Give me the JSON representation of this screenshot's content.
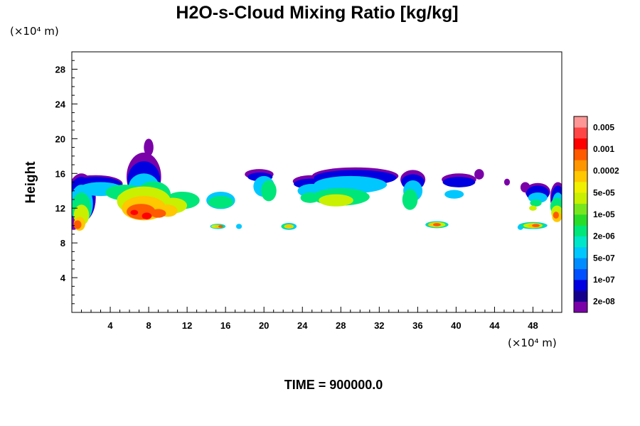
{
  "chart_data": {
    "type": "heatmap",
    "title": "H2O-s-Cloud Mixing Ratio [kg/kg]",
    "ylabel": "Height",
    "x_unit": "(×10⁴ m)",
    "y_unit": "(×10⁴ m)",
    "footer": "TIME = 900000.0",
    "xlim": [
      0,
      51
    ],
    "ylim": [
      0,
      30
    ],
    "x_ticks": [
      4,
      8,
      12,
      16,
      20,
      24,
      28,
      32,
      36,
      40,
      44,
      48
    ],
    "y_ticks": [
      4,
      8,
      12,
      16,
      20,
      24,
      28
    ],
    "colorbar": {
      "colors": [
        "#7a00a8",
        "#15008c",
        "#0000e0",
        "#0050ff",
        "#008cff",
        "#00c8ff",
        "#00e6c8",
        "#00e678",
        "#28dc28",
        "#78e61e",
        "#c8f000",
        "#f0f000",
        "#ffc800",
        "#ff9600",
        "#ff5a00",
        "#ff0000",
        "#ff4646",
        "#ff9696"
      ],
      "labels": [
        "2e-08",
        "1e-07",
        "5e-07",
        "2e-06",
        "1e-05",
        "5e-05",
        "0.0002",
        "0.001",
        "0.005"
      ]
    },
    "cloud_layers": [
      {
        "colorIdx": 0,
        "blobs": [
          [
            2.5,
            14.8,
            2.8,
            1.0
          ],
          [
            7.5,
            15.6,
            1.8,
            2.8
          ],
          [
            1.0,
            13.2,
            1.5,
            2.8
          ],
          [
            0.2,
            10.3,
            0.6,
            0.8
          ],
          [
            19.5,
            15.9,
            1.5,
            0.6
          ],
          [
            29.5,
            15.7,
            4.5,
            1.0
          ],
          [
            25.0,
            15.1,
            2.0,
            0.7
          ],
          [
            35.5,
            15.3,
            1.3,
            1.1
          ],
          [
            40.3,
            15.3,
            1.8,
            0.7
          ],
          [
            42.4,
            15.9,
            0.5,
            0.6
          ],
          [
            48.5,
            13.9,
            1.3,
            1.0
          ],
          [
            50.6,
            13.2,
            0.8,
            1.8
          ],
          [
            45.3,
            15.0,
            0.3,
            0.4
          ],
          [
            8.0,
            19.0,
            0.5,
            1.0
          ],
          [
            47.2,
            14.4,
            0.5,
            0.6
          ]
        ]
      },
      {
        "colorIdx": 2,
        "blobs": [
          [
            2.5,
            14.7,
            2.7,
            0.9
          ],
          [
            7.5,
            15.2,
            1.7,
            2.2
          ],
          [
            1.0,
            13.0,
            1.4,
            2.6
          ],
          [
            19.6,
            15.6,
            1.3,
            0.5
          ],
          [
            29.5,
            15.5,
            4.3,
            0.9
          ],
          [
            25.0,
            14.8,
            1.9,
            0.6
          ],
          [
            35.5,
            15.0,
            1.2,
            0.9
          ],
          [
            40.3,
            15.0,
            1.7,
            0.6
          ],
          [
            48.5,
            13.7,
            1.2,
            0.9
          ],
          [
            50.6,
            13.0,
            0.7,
            1.6
          ]
        ]
      },
      {
        "colorIdx": 5,
        "blobs": [
          [
            3.0,
            14.2,
            2.3,
            0.8
          ],
          [
            7.5,
            14.4,
            1.6,
            1.6
          ],
          [
            1.0,
            12.5,
            1.2,
            2.2
          ],
          [
            20.0,
            14.5,
            1.1,
            1.2
          ],
          [
            29.0,
            14.7,
            3.8,
            1.0
          ],
          [
            25.0,
            14.0,
            1.5,
            0.8
          ],
          [
            35.5,
            14.0,
            1.0,
            1.2
          ],
          [
            39.8,
            13.6,
            1.0,
            0.5
          ],
          [
            15.5,
            12.9,
            1.5,
            1.0
          ],
          [
            48.5,
            13.2,
            1.0,
            0.6
          ],
          [
            50.6,
            12.5,
            0.6,
            1.3
          ],
          [
            15.2,
            9.9,
            0.8,
            0.3
          ],
          [
            22.6,
            9.9,
            0.8,
            0.4
          ],
          [
            38.0,
            10.1,
            1.2,
            0.4
          ],
          [
            48.0,
            10.0,
            1.5,
            0.4
          ],
          [
            17.4,
            9.9,
            0.3,
            0.3
          ],
          [
            46.7,
            9.8,
            0.3,
            0.3
          ]
        ]
      },
      {
        "colorIdx": 7,
        "blobs": [
          [
            5.5,
            13.8,
            2.0,
            0.9
          ],
          [
            8.5,
            13.5,
            1.8,
            1.6
          ],
          [
            11.5,
            12.9,
            1.8,
            1.0
          ],
          [
            15.5,
            12.7,
            1.3,
            0.7
          ],
          [
            20.5,
            14.0,
            0.8,
            1.2
          ],
          [
            28.0,
            13.3,
            3.0,
            1.0
          ],
          [
            35.2,
            13.0,
            0.8,
            1.2
          ],
          [
            24.8,
            13.2,
            1.0,
            0.6
          ],
          [
            1.0,
            12.0,
            1.0,
            1.8
          ],
          [
            50.5,
            12.2,
            0.7,
            1.0
          ],
          [
            48.3,
            12.6,
            0.6,
            0.4
          ],
          [
            15.2,
            9.9,
            0.7,
            0.25
          ],
          [
            22.5,
            9.9,
            0.7,
            0.3
          ],
          [
            38.0,
            10.1,
            1.1,
            0.35
          ],
          [
            48.0,
            10.0,
            1.3,
            0.35
          ]
        ]
      },
      {
        "colorIdx": 10,
        "blobs": [
          [
            7.5,
            12.8,
            2.8,
            1.7
          ],
          [
            10.5,
            12.3,
            1.5,
            0.9
          ],
          [
            6.0,
            13.0,
            1.3,
            0.9
          ],
          [
            27.5,
            12.9,
            1.8,
            0.7
          ],
          [
            1.0,
            11.2,
            0.8,
            1.2
          ],
          [
            50.5,
            11.5,
            0.6,
            0.8
          ],
          [
            48.0,
            12.0,
            0.4,
            0.3
          ],
          [
            15.0,
            9.9,
            0.5,
            0.2
          ],
          [
            22.6,
            9.9,
            0.5,
            0.25
          ],
          [
            38.0,
            10.1,
            0.9,
            0.3
          ],
          [
            48.0,
            10.0,
            1.0,
            0.3
          ]
        ]
      },
      {
        "colorIdx": 12,
        "blobs": [
          [
            7.5,
            12.0,
            2.3,
            1.4
          ],
          [
            10.0,
            11.7,
            1.0,
            0.7
          ],
          [
            0.8,
            10.2,
            0.6,
            0.8
          ],
          [
            50.5,
            11.0,
            0.5,
            0.6
          ],
          [
            15.3,
            9.9,
            0.4,
            0.18
          ],
          [
            22.6,
            9.9,
            0.4,
            0.2
          ],
          [
            37.8,
            10.1,
            0.7,
            0.25
          ],
          [
            48.2,
            10.0,
            0.7,
            0.25
          ]
        ]
      },
      {
        "colorIdx": 14,
        "blobs": [
          [
            7.2,
            11.6,
            1.5,
            0.9
          ],
          [
            9.0,
            11.4,
            0.8,
            0.5
          ],
          [
            0.6,
            10.1,
            0.4,
            0.5
          ],
          [
            50.4,
            11.2,
            0.3,
            0.4
          ],
          [
            15.5,
            9.9,
            0.25,
            0.15
          ],
          [
            38.0,
            10.1,
            0.4,
            0.18
          ],
          [
            48.3,
            10.0,
            0.4,
            0.18
          ]
        ]
      },
      {
        "colorIdx": 15,
        "blobs": [
          [
            7.8,
            11.1,
            0.5,
            0.4
          ],
          [
            6.5,
            11.5,
            0.4,
            0.3
          ]
        ]
      }
    ]
  }
}
